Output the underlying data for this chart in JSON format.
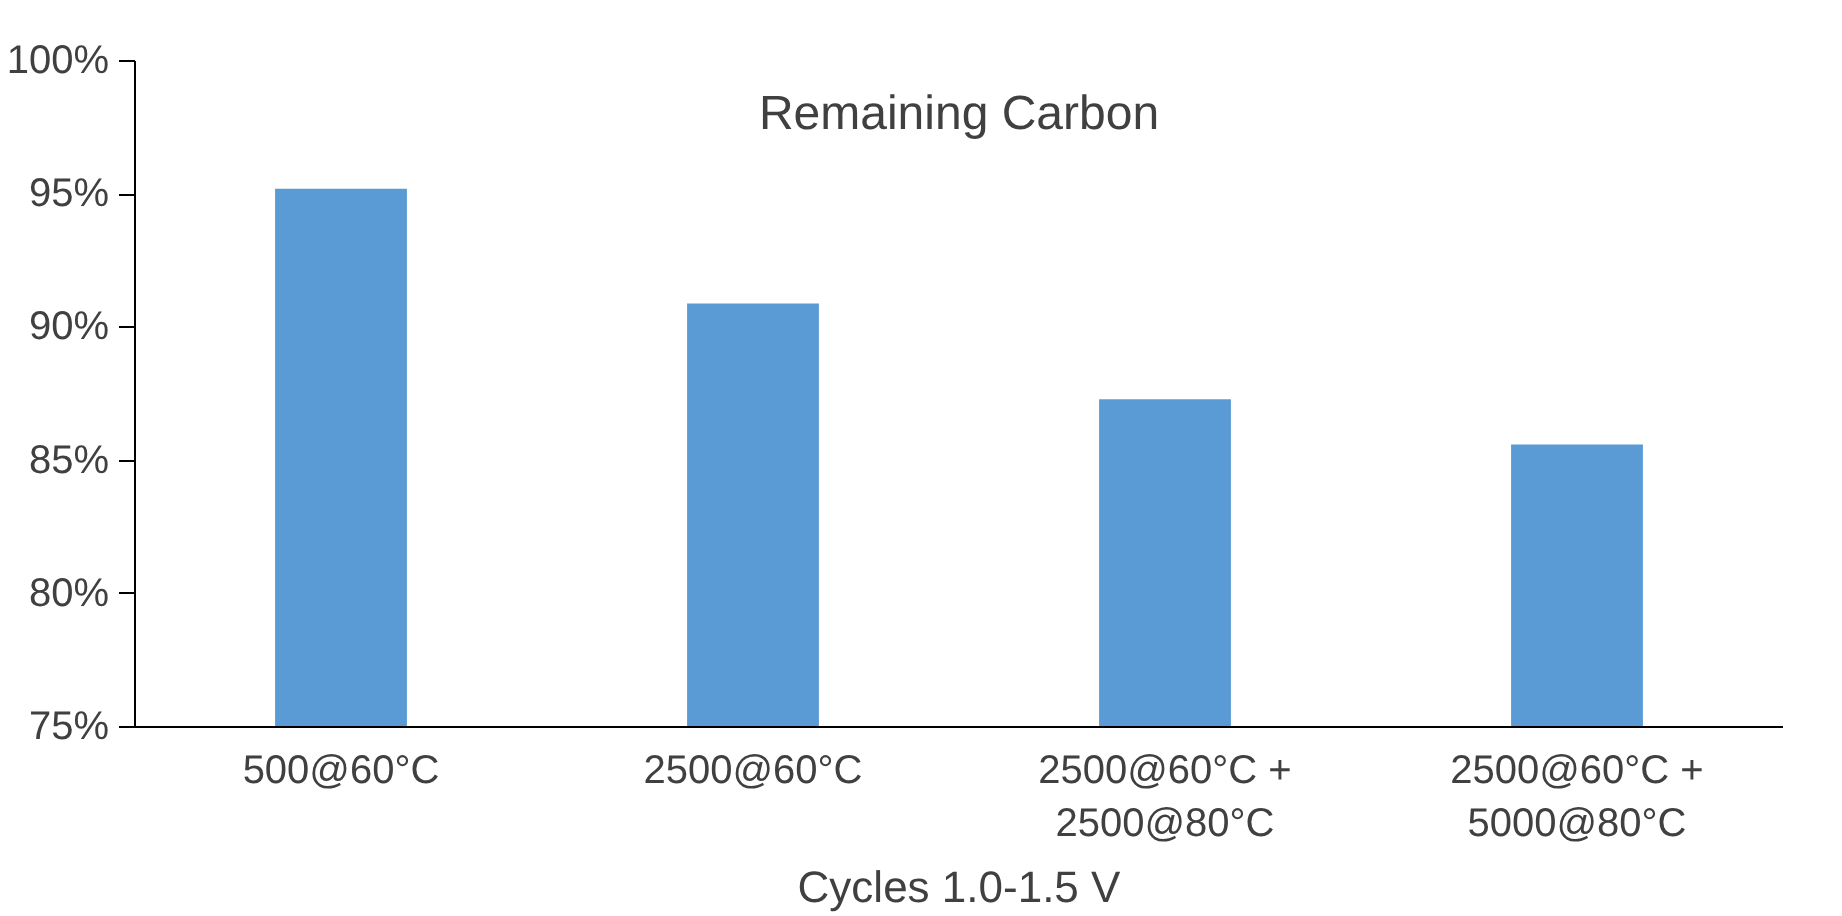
{
  "chart_data": {
    "type": "bar",
    "title": "Remaining Carbon",
    "xlabel": "Cycles 1.0-1.5 V",
    "categories": [
      "500@60°C",
      "2500@60°C",
      "2500@60°C +\n2500@80°C",
      "2500@60°C +\n5000@80°C"
    ],
    "values": [
      95.2,
      90.9,
      87.3,
      85.6
    ],
    "color": "#5b9bd5",
    "ylim": [
      75,
      100
    ],
    "yticks": [
      {
        "value": 75,
        "label": "75%"
      },
      {
        "value": 80,
        "label": "80%"
      },
      {
        "value": 85,
        "label": "85%"
      },
      {
        "value": 90,
        "label": "90%"
      },
      {
        "value": 95,
        "label": "95%"
      },
      {
        "value": 100,
        "label": "100%"
      }
    ],
    "grid": false
  }
}
